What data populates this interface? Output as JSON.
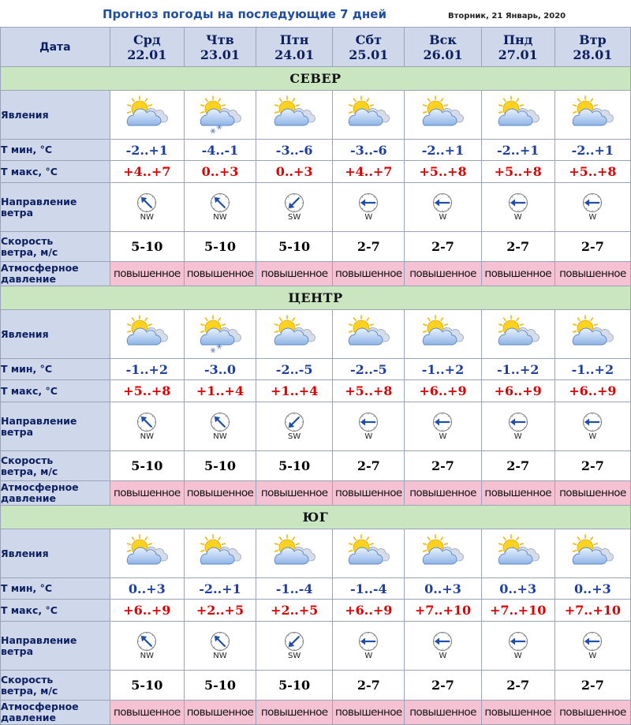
{
  "title": "Прогноз погоды на последующие 7 дней",
  "date": "Вторник, 21 Январь, 2020",
  "header_label": "Дата",
  "row_labels": {
    "phenomena": "Явления",
    "tmin": "Т мин, °С",
    "tmax": "Т макс, °С",
    "wind_dir": "Направление\nветра",
    "wind_speed": "Скорость\nветра, м/с",
    "pressure": "Атмосферное\nдавление"
  },
  "days": [
    {
      "name": "Срд",
      "date": "22.01"
    },
    {
      "name": "Чтв",
      "date": "23.01"
    },
    {
      "name": "Птн",
      "date": "24.01"
    },
    {
      "name": "Сбт",
      "date": "25.01"
    },
    {
      "name": "Вск",
      "date": "26.01"
    },
    {
      "name": "Пнд",
      "date": "27.01"
    },
    {
      "name": "Втр",
      "date": "28.01"
    }
  ],
  "regions": [
    {
      "name": "СЕВЕР",
      "icons": [
        "partly-cloudy-icon",
        "partly-cloudy-snow-icon",
        "partly-cloudy-icon",
        "partly-cloudy-icon",
        "partly-cloudy-icon",
        "partly-cloudy-icon",
        "partly-cloudy-icon"
      ],
      "tmin": [
        "-2..+1",
        "-4..-1",
        "-3..-6",
        "-3..-6",
        "-2..+1",
        "-2..+1",
        "-2..+1"
      ],
      "tmax": [
        "+4..+7",
        "0..+3",
        "0..+3",
        "+4..+7",
        "+5..+8",
        "+5..+8",
        "+5..+8"
      ],
      "wind_dir": [
        "NW",
        "NW",
        "SW",
        "W",
        "W",
        "W",
        "W"
      ],
      "wind_speed": [
        "5-10",
        "5-10",
        "5-10",
        "2-7",
        "2-7",
        "2-7",
        "2-7"
      ],
      "pressure": [
        "повышенное",
        "повышенное",
        "повышенное",
        "повышенное",
        "повышенное",
        "повышенное",
        "повышенное"
      ]
    },
    {
      "name": "ЦЕНТР",
      "icons": [
        "partly-cloudy-icon",
        "partly-cloudy-snow-icon",
        "partly-cloudy-icon",
        "partly-cloudy-icon",
        "partly-cloudy-icon",
        "partly-cloudy-icon",
        "partly-cloudy-icon"
      ],
      "tmin": [
        "-1..+2",
        "-3..0",
        "-2..-5",
        "-2..-5",
        "-1..+2",
        "-1..+2",
        "-1..+2"
      ],
      "tmax": [
        "+5..+8",
        "+1..+4",
        "+1..+4",
        "+5..+8",
        "+6..+9",
        "+6..+9",
        "+6..+9"
      ],
      "wind_dir": [
        "NW",
        "NW",
        "SW",
        "W",
        "W",
        "W",
        "W"
      ],
      "wind_speed": [
        "5-10",
        "5-10",
        "5-10",
        "2-7",
        "2-7",
        "2-7",
        "2-7"
      ],
      "pressure": [
        "повышенное",
        "повышенное",
        "повышенное",
        "повышенное",
        "повышенное",
        "повышенное",
        "повышенное"
      ]
    },
    {
      "name": "ЮГ",
      "icons": [
        "partly-cloudy-icon",
        "partly-cloudy-icon",
        "partly-cloudy-icon",
        "partly-cloudy-icon",
        "partly-cloudy-icon",
        "partly-cloudy-icon",
        "partly-cloudy-icon"
      ],
      "tmin": [
        "0..+3",
        "-2..+1",
        "-1..-4",
        "-1..-4",
        "0..+3",
        "0..+3",
        "0..+3"
      ],
      "tmax": [
        "+6..+9",
        "+2..+5",
        "+2..+5",
        "+6..+9",
        "+7..+10",
        "+7..+10",
        "+7..+10"
      ],
      "wind_dir": [
        "NW",
        "NW",
        "SW",
        "W",
        "W",
        "W",
        "W"
      ],
      "wind_speed": [
        "5-10",
        "5-10",
        "5-10",
        "2-7",
        "2-7",
        "2-7",
        "2-7"
      ],
      "pressure": [
        "повышенное",
        "повышенное",
        "повышенное",
        "повышенное",
        "повышенное",
        "повышенное",
        "повышенное"
      ]
    }
  ],
  "colors": {
    "header_bg": "#cfd7ea",
    "region_bg": "#c9e6c0",
    "pressure_bg": "#f4c2d2",
    "tmin": "#1b3fa6",
    "tmax": "#e00000",
    "title": "#1f4e9c"
  }
}
